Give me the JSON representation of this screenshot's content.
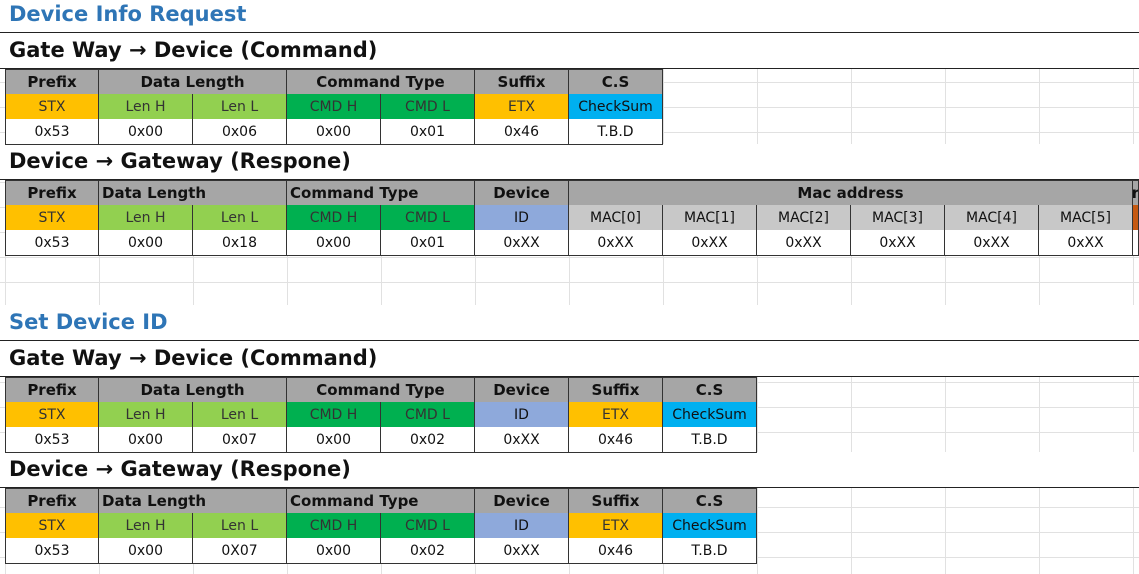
{
  "sections": [
    {
      "title": "Device Info Request",
      "tables": [
        {
          "subtitle": "Gate Way → Device (Command)",
          "header_cells": [
            "Prefix",
            "Data Length",
            "Command Type",
            "Suffix",
            "C.S"
          ],
          "field_cells": [
            "STX",
            "Len H",
            "Len L",
            "CMD H",
            "CMD L",
            "ETX",
            "CheckSum"
          ],
          "value_cells": [
            "0x53",
            "0x00",
            "0x06",
            "0x00",
            "0x01",
            "0x46",
            "T.B.D"
          ]
        },
        {
          "subtitle": "Device → Gateway (Respone)",
          "header_cells": [
            "Prefix",
            "Data Length",
            "Command Type",
            "Device",
            "Mac address",
            "r"
          ],
          "field_cells": [
            "STX",
            "Len H",
            "Len L",
            "CMD H",
            "CMD L",
            "ID",
            "MAC[0]",
            "MAC[1]",
            "MAC[2]",
            "MAC[3]",
            "MAC[4]",
            "MAC[5]",
            ""
          ],
          "value_cells": [
            "0x53",
            "0x00",
            "0x18",
            "0x00",
            "0x01",
            "0xXX",
            "0xXX",
            "0xXX",
            "0xXX",
            "0xXX",
            "0xXX",
            "0xXX",
            ""
          ]
        }
      ]
    },
    {
      "title": "Set Device ID",
      "tables": [
        {
          "subtitle": "Gate Way → Device (Command)",
          "header_cells": [
            "Prefix",
            "Data Length",
            "Command Type",
            "Device",
            "Suffix",
            "C.S"
          ],
          "field_cells": [
            "STX",
            "Len H",
            "Len L",
            "CMD H",
            "CMD L",
            "ID",
            "ETX",
            "CheckSum"
          ],
          "value_cells": [
            "0x53",
            "0x00",
            "0x07",
            "0x00",
            "0x02",
            "0xXX",
            "0x46",
            "T.B.D"
          ]
        },
        {
          "subtitle": "Device → Gateway (Respone)",
          "header_cells": [
            "Prefix",
            "Data Length",
            "Command Type",
            "Device",
            "Suffix",
            "C.S"
          ],
          "field_cells": [
            "STX",
            "Len H",
            "Len L",
            "CMD H",
            "CMD L",
            "ID",
            "ETX",
            "CheckSum"
          ],
          "value_cells": [
            "0x53",
            "0x00",
            "0X07",
            "0x00",
            "0x02",
            "0xXX",
            "0x46",
            "T.B.D"
          ]
        }
      ]
    }
  ],
  "colors": {
    "section_title": "#2e75b6",
    "header_bg": "#a6a6a6",
    "stx_etx": "#ffc000",
    "length": "#92d050",
    "command": "#00b050",
    "checksum": "#00b0f0",
    "device_id": "#8ea9db",
    "mac": "#c8c8c8"
  }
}
